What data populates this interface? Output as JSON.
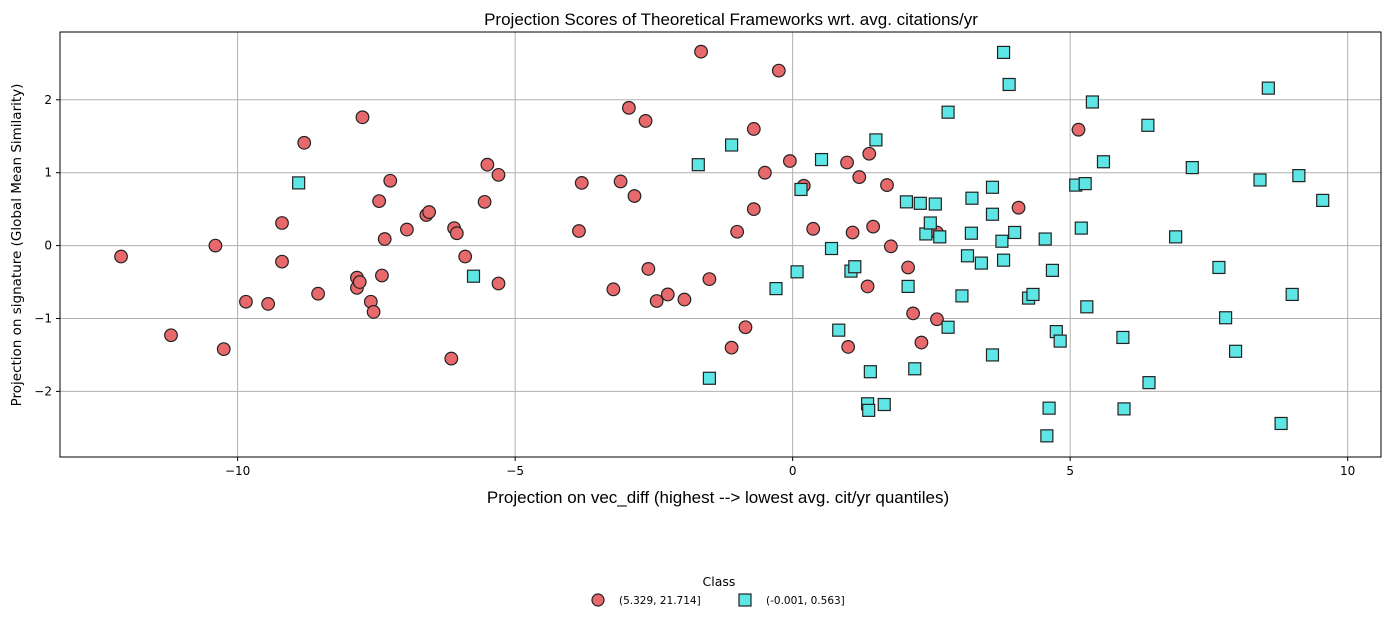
{
  "chart_data": {
    "type": "scatter",
    "title": "Projection Scores of Theoretical Frameworks wrt. avg. citations/yr",
    "xlabel": "Projection on vec_diff (highest --> lowest avg. cit/yr quantiles)",
    "ylabel": "Projection on signature (Global Mean Similarity)",
    "xlim": [
      -13.2,
      10.6
    ],
    "ylim": [
      -2.9,
      2.93
    ],
    "x_ticks": [
      -10,
      -5,
      0,
      5,
      10
    ],
    "x_tick_labels": [
      "−10",
      "−5",
      "0",
      "5",
      "10"
    ],
    "y_ticks": [
      -2,
      -1,
      0,
      1,
      2
    ],
    "y_tick_labels": [
      "−2",
      "−1",
      "0",
      "1",
      "2"
    ],
    "grid": true,
    "legend": {
      "title": "Class",
      "placement": "bottom-center"
    },
    "series": [
      {
        "name": "(5.329, 21.714]",
        "marker": "circle",
        "color": "#e8696b",
        "points": [
          [
            -12.1,
            -0.15
          ],
          [
            -11.2,
            -1.23
          ],
          [
            -10.4,
            0.0
          ],
          [
            -10.25,
            -1.42
          ],
          [
            -9.85,
            -0.77
          ],
          [
            -9.45,
            -0.8
          ],
          [
            -9.2,
            0.31
          ],
          [
            -9.2,
            -0.22
          ],
          [
            -8.8,
            1.41
          ],
          [
            -8.55,
            -0.66
          ],
          [
            -7.85,
            -0.44
          ],
          [
            -7.85,
            -0.58
          ],
          [
            -7.8,
            -0.5
          ],
          [
            -7.75,
            1.76
          ],
          [
            -7.6,
            -0.77
          ],
          [
            -7.55,
            -0.91
          ],
          [
            -7.45,
            0.61
          ],
          [
            -7.4,
            -0.41
          ],
          [
            -7.35,
            0.09
          ],
          [
            -7.25,
            0.89
          ],
          [
            -6.95,
            0.22
          ],
          [
            -6.6,
            0.42
          ],
          [
            -6.55,
            0.46
          ],
          [
            -6.1,
            0.24
          ],
          [
            -6.05,
            0.17
          ],
          [
            -6.15,
            -1.55
          ],
          [
            -5.9,
            -0.15
          ],
          [
            -5.55,
            0.6
          ],
          [
            -5.5,
            1.11
          ],
          [
            -5.3,
            0.97
          ],
          [
            -5.3,
            -0.52
          ],
          [
            -3.85,
            0.2
          ],
          [
            -3.8,
            0.86
          ],
          [
            -3.23,
            -0.6
          ],
          [
            -3.1,
            0.88
          ],
          [
            -2.95,
            1.89
          ],
          [
            -2.85,
            0.68
          ],
          [
            -2.65,
            1.71
          ],
          [
            -2.6,
            -0.32
          ],
          [
            -2.45,
            -0.76
          ],
          [
            -2.25,
            -0.67
          ],
          [
            -1.95,
            -0.74
          ],
          [
            -1.65,
            2.66
          ],
          [
            -1.5,
            -0.46
          ],
          [
            -1.1,
            -1.4
          ],
          [
            -1.0,
            0.19
          ],
          [
            -0.85,
            -1.12
          ],
          [
            -0.7,
            1.6
          ],
          [
            -0.7,
            0.5
          ],
          [
            -0.5,
            1.0
          ],
          [
            -0.25,
            2.4
          ],
          [
            -0.05,
            1.16
          ],
          [
            0.2,
            0.82
          ],
          [
            0.37,
            0.23
          ],
          [
            0.98,
            1.14
          ],
          [
            1.0,
            -1.39
          ],
          [
            1.08,
            0.18
          ],
          [
            1.2,
            0.94
          ],
          [
            1.35,
            -0.56
          ],
          [
            1.38,
            1.26
          ],
          [
            1.45,
            0.26
          ],
          [
            1.7,
            0.83
          ],
          [
            1.77,
            -0.01
          ],
          [
            2.08,
            -0.3
          ],
          [
            2.17,
            -0.93
          ],
          [
            2.32,
            -1.33
          ],
          [
            2.6,
            0.18
          ],
          [
            2.6,
            -1.01
          ],
          [
            4.07,
            0.52
          ],
          [
            5.15,
            1.59
          ]
        ]
      },
      {
        "name": "(-0.001, 0.563]",
        "marker": "square",
        "color": "#5de6e5",
        "points": [
          [
            -8.9,
            0.86
          ],
          [
            -5.75,
            -0.42
          ],
          [
            -1.7,
            1.11
          ],
          [
            -1.5,
            -1.82
          ],
          [
            -1.1,
            1.38
          ],
          [
            -0.3,
            -0.59
          ],
          [
            0.08,
            -0.36
          ],
          [
            0.15,
            0.77
          ],
          [
            0.52,
            1.18
          ],
          [
            0.7,
            -0.04
          ],
          [
            0.83,
            -1.16
          ],
          [
            1.05,
            -0.35
          ],
          [
            1.12,
            -0.29
          ],
          [
            1.35,
            -2.17
          ],
          [
            1.37,
            -2.26
          ],
          [
            1.4,
            -1.73
          ],
          [
            1.5,
            1.45
          ],
          [
            1.65,
            -2.18
          ],
          [
            2.05,
            0.6
          ],
          [
            2.08,
            -0.56
          ],
          [
            2.2,
            -1.69
          ],
          [
            2.3,
            0.58
          ],
          [
            2.4,
            0.16
          ],
          [
            2.48,
            0.31
          ],
          [
            2.57,
            0.57
          ],
          [
            2.65,
            0.12
          ],
          [
            2.8,
            1.83
          ],
          [
            2.8,
            -1.12
          ],
          [
            3.05,
            -0.69
          ],
          [
            3.15,
            -0.14
          ],
          [
            3.22,
            0.17
          ],
          [
            3.23,
            0.65
          ],
          [
            3.4,
            -0.24
          ],
          [
            3.6,
            0.8
          ],
          [
            3.6,
            0.43
          ],
          [
            3.6,
            -1.5
          ],
          [
            3.77,
            0.06
          ],
          [
            3.8,
            2.65
          ],
          [
            3.8,
            -0.2
          ],
          [
            3.9,
            2.21
          ],
          [
            4.0,
            0.18
          ],
          [
            4.25,
            -0.72
          ],
          [
            4.33,
            -0.67
          ],
          [
            4.55,
            0.09
          ],
          [
            4.58,
            -2.61
          ],
          [
            4.62,
            -2.23
          ],
          [
            4.68,
            -0.34
          ],
          [
            4.75,
            -1.18
          ],
          [
            4.82,
            -1.31
          ],
          [
            5.1,
            0.83
          ],
          [
            5.2,
            0.24
          ],
          [
            5.27,
            0.85
          ],
          [
            5.3,
            -0.84
          ],
          [
            5.4,
            1.97
          ],
          [
            5.6,
            1.15
          ],
          [
            5.95,
            -1.26
          ],
          [
            5.97,
            -2.24
          ],
          [
            6.4,
            1.65
          ],
          [
            6.42,
            -1.88
          ],
          [
            6.9,
            0.12
          ],
          [
            7.2,
            1.07
          ],
          [
            7.68,
            -0.3
          ],
          [
            7.8,
            -0.99
          ],
          [
            7.98,
            -1.45
          ],
          [
            8.42,
            0.9
          ],
          [
            8.57,
            2.16
          ],
          [
            8.8,
            -2.44
          ],
          [
            9.0,
            -0.67
          ],
          [
            9.12,
            0.96
          ],
          [
            9.55,
            0.62
          ]
        ]
      }
    ]
  }
}
